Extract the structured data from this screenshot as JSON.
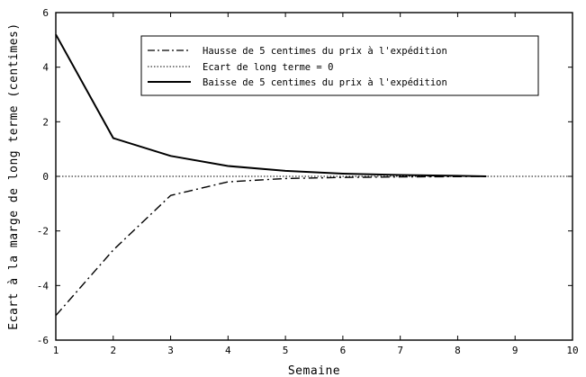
{
  "chart_data": {
    "type": "line",
    "xlabel": "Semaine",
    "ylabel": "Ecart à la marge de long terme (centimes)",
    "xlim": [
      1,
      10
    ],
    "ylim": [
      -6,
      6
    ],
    "x_ticks": [
      1,
      2,
      3,
      4,
      5,
      6,
      7,
      8,
      9,
      10
    ],
    "y_ticks": [
      -6,
      -4,
      -2,
      0,
      2,
      4,
      6
    ],
    "y_tick_labels": [
      "-6",
      "-4",
      "-2",
      "0",
      "2",
      "4",
      "6"
    ],
    "grid": false,
    "legend_position": "top-right",
    "series": [
      {
        "name": "Hausse de 5 centimes du prix à l'expédition",
        "style": "dash-dot",
        "x": [
          1,
          2,
          3,
          4,
          5,
          6,
          7,
          8,
          8.5
        ],
        "y": [
          -5.1,
          -2.7,
          -0.7,
          -0.2,
          -0.08,
          -0.04,
          -0.02,
          -0.01,
          0
        ]
      },
      {
        "name": "Ecart de long terme = 0",
        "style": "dotted",
        "x": [
          1,
          10
        ],
        "y": [
          0,
          0
        ]
      },
      {
        "name": "Baisse de 5 centimes du prix à l'expédition",
        "style": "solid",
        "x": [
          1,
          2,
          3,
          4,
          5,
          6,
          7,
          8,
          8.5
        ],
        "y": [
          5.2,
          1.4,
          0.75,
          0.38,
          0.2,
          0.1,
          0.05,
          0.02,
          0
        ]
      }
    ]
  }
}
